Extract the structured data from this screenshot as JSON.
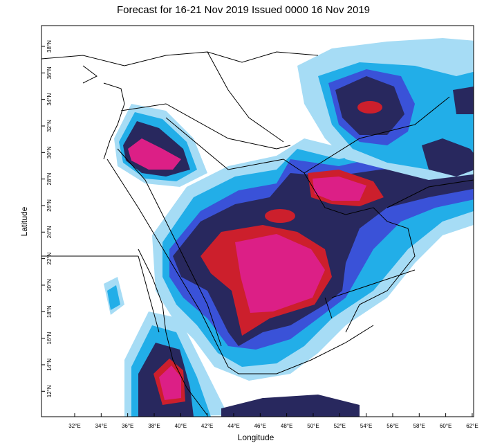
{
  "title": "Forecast for 16-21 Nov 2019 Issued 0000 16 Nov 2019",
  "x_axis": {
    "label": "Longitude",
    "ticks": [
      "32°E",
      "34°E",
      "36°E",
      "38°E",
      "40°E",
      "42°E",
      "44°E",
      "46°E",
      "48°E",
      "50°E",
      "52°E",
      "54°E",
      "56°E",
      "58°E",
      "60°E",
      "62°E"
    ]
  },
  "y_axis": {
    "label": "Latitude",
    "ticks": [
      "38°N",
      "36°N",
      "34°N",
      "32°N",
      "30°N",
      "28°N",
      "26°N",
      "24°N",
      "22°N",
      "20°N",
      "18°N",
      "16°N",
      "14°N",
      "12°N"
    ]
  }
}
